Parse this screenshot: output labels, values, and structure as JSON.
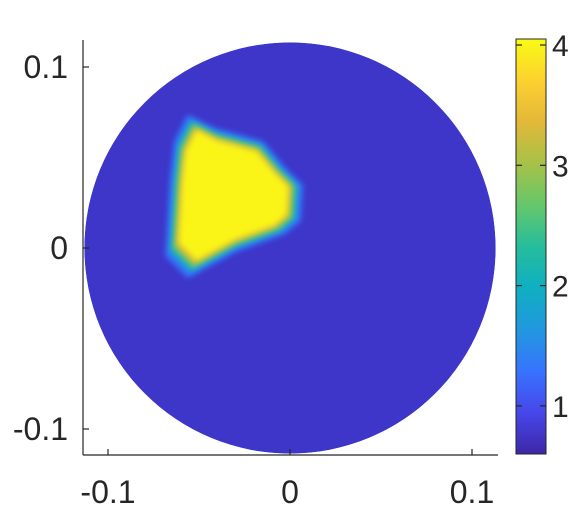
{
  "chart_data": {
    "type": "heatmap",
    "title": "",
    "xlabel": "",
    "ylabel": "",
    "xlim": [
      -0.115,
      0.115
    ],
    "ylim": [
      -0.115,
      0.115
    ],
    "x_ticks": [
      {
        "value": -0.1,
        "label": "-0.1"
      },
      {
        "value": 0,
        "label": "0"
      },
      {
        "value": 0.1,
        "label": "0.1"
      }
    ],
    "y_ticks": [
      {
        "value": 0.1,
        "label": "0.1"
      },
      {
        "value": 0,
        "label": "0"
      },
      {
        "value": -0.1,
        "label": "-0.1"
      }
    ],
    "domain": {
      "shape": "circle",
      "center": [
        0,
        0
      ],
      "radius": 0.113
    },
    "background_value": 0.75,
    "inclusion": {
      "value": 4.0,
      "polygon": [
        [
          -0.052,
          0.066
        ],
        [
          -0.04,
          0.06
        ],
        [
          -0.018,
          0.054
        ],
        [
          -0.008,
          0.042
        ],
        [
          0.0,
          0.034
        ],
        [
          -0.001,
          0.018
        ],
        [
          -0.008,
          0.012
        ],
        [
          -0.03,
          0.004
        ],
        [
          -0.052,
          -0.008
        ],
        [
          -0.062,
          0.002
        ],
        [
          -0.06,
          0.036
        ],
        [
          -0.058,
          0.054
        ]
      ]
    },
    "colorbar": {
      "colormap": "parula",
      "range": [
        0.6,
        4.05
      ],
      "ticks": [
        {
          "value": 1,
          "label": "1"
        },
        {
          "value": 2,
          "label": "2"
        },
        {
          "value": 3,
          "label": "3"
        },
        {
          "value": 4,
          "label": "4"
        }
      ]
    },
    "colors": {
      "background_blue": "#3d36c9",
      "inclusion_yellow": "#f7f41a",
      "axis": "#262626"
    }
  }
}
